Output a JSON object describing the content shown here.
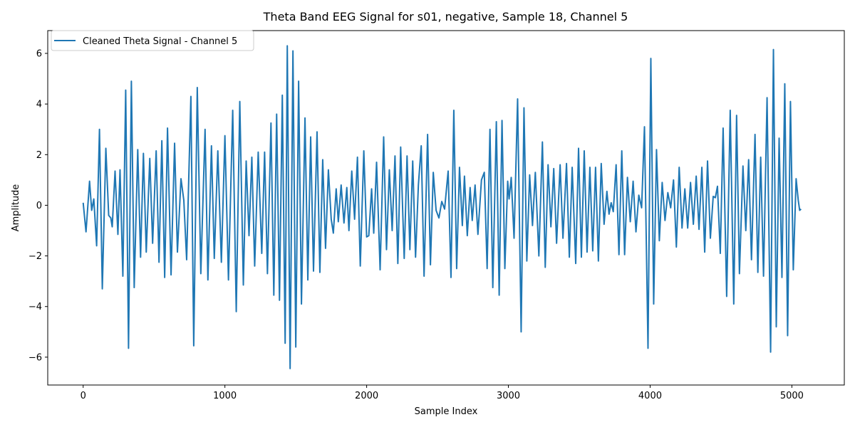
{
  "chart_data": {
    "type": "line",
    "title": "Theta Band EEG Signal for s01, negative, Sample 18, Channel 5",
    "xlabel": "Sample Index",
    "ylabel": "Amplitude",
    "xlim": [
      -250,
      5370
    ],
    "ylim": [
      -7.1,
      6.9
    ],
    "xticks": [
      0,
      1000,
      2000,
      3000,
      4000,
      5000
    ],
    "yticks": [
      -6,
      -4,
      -2,
      0,
      2,
      4,
      6
    ],
    "grid": false,
    "legend_position": "top-left",
    "color": "#1f77b4",
    "series": [
      {
        "name": "Cleaned Theta Signal - Channel 5",
        "points": [
          [
            0,
            0.1
          ],
          [
            20,
            -1.05
          ],
          [
            45,
            0.95
          ],
          [
            60,
            -0.2
          ],
          [
            75,
            0.25
          ],
          [
            95,
            -1.6
          ],
          [
            115,
            3.0
          ],
          [
            135,
            -3.3
          ],
          [
            160,
            2.25
          ],
          [
            180,
            -0.4
          ],
          [
            195,
            -0.5
          ],
          [
            205,
            -0.85
          ],
          [
            225,
            1.35
          ],
          [
            245,
            -1.15
          ],
          [
            260,
            1.4
          ],
          [
            280,
            -2.8
          ],
          [
            300,
            4.55
          ],
          [
            320,
            -5.65
          ],
          [
            340,
            4.9
          ],
          [
            360,
            -3.25
          ],
          [
            385,
            2.2
          ],
          [
            405,
            -2.05
          ],
          [
            425,
            2.05
          ],
          [
            445,
            -1.85
          ],
          [
            470,
            1.85
          ],
          [
            490,
            -1.5
          ],
          [
            515,
            2.15
          ],
          [
            535,
            -2.25
          ],
          [
            555,
            2.55
          ],
          [
            575,
            -2.85
          ],
          [
            595,
            3.05
          ],
          [
            620,
            -2.75
          ],
          [
            645,
            2.45
          ],
          [
            665,
            -1.85
          ],
          [
            690,
            1.05
          ],
          [
            710,
            0.2
          ],
          [
            730,
            -2.15
          ],
          [
            760,
            4.3
          ],
          [
            780,
            -5.55
          ],
          [
            805,
            4.65
          ],
          [
            830,
            -2.7
          ],
          [
            860,
            3.0
          ],
          [
            880,
            -2.95
          ],
          [
            905,
            2.35
          ],
          [
            925,
            -2.1
          ],
          [
            950,
            2.15
          ],
          [
            975,
            -2.25
          ],
          [
            1000,
            2.75
          ],
          [
            1025,
            -2.95
          ],
          [
            1055,
            3.75
          ],
          [
            1080,
            -4.2
          ],
          [
            1105,
            4.1
          ],
          [
            1130,
            -3.15
          ],
          [
            1150,
            1.75
          ],
          [
            1170,
            -1.2
          ],
          [
            1190,
            1.9
          ],
          [
            1210,
            -2.4
          ],
          [
            1235,
            2.1
          ],
          [
            1260,
            -1.9
          ],
          [
            1280,
            2.1
          ],
          [
            1300,
            -2.7
          ],
          [
            1325,
            3.25
          ],
          [
            1345,
            -3.55
          ],
          [
            1365,
            3.6
          ],
          [
            1385,
            -3.75
          ],
          [
            1405,
            4.35
          ],
          [
            1425,
            -5.45
          ],
          [
            1440,
            6.3
          ],
          [
            1460,
            -6.45
          ],
          [
            1480,
            6.1
          ],
          [
            1500,
            -5.6
          ],
          [
            1520,
            4.9
          ],
          [
            1540,
            -3.9
          ],
          [
            1565,
            3.45
          ],
          [
            1585,
            -2.95
          ],
          [
            1605,
            2.7
          ],
          [
            1625,
            -2.6
          ],
          [
            1650,
            2.9
          ],
          [
            1670,
            -2.65
          ],
          [
            1690,
            1.8
          ],
          [
            1710,
            -1.7
          ],
          [
            1730,
            1.4
          ],
          [
            1750,
            -0.55
          ],
          [
            1765,
            -1.1
          ],
          [
            1785,
            0.65
          ],
          [
            1800,
            -0.65
          ],
          [
            1820,
            0.8
          ],
          [
            1840,
            -0.7
          ],
          [
            1860,
            0.7
          ],
          [
            1875,
            -1.0
          ],
          [
            1895,
            1.35
          ],
          [
            1915,
            -0.55
          ],
          [
            1935,
            1.9
          ],
          [
            1955,
            -2.4
          ],
          [
            1980,
            2.15
          ],
          [
            2000,
            -1.25
          ],
          [
            2015,
            -1.2
          ],
          [
            2035,
            0.65
          ],
          [
            2050,
            -1.1
          ],
          [
            2070,
            1.7
          ],
          [
            2095,
            -2.55
          ],
          [
            2120,
            2.7
          ],
          [
            2140,
            -1.75
          ],
          [
            2160,
            1.4
          ],
          [
            2180,
            -1.0
          ],
          [
            2200,
            1.95
          ],
          [
            2220,
            -2.3
          ],
          [
            2240,
            2.3
          ],
          [
            2265,
            -2.1
          ],
          [
            2285,
            1.95
          ],
          [
            2305,
            -1.75
          ],
          [
            2325,
            1.75
          ],
          [
            2345,
            -2.05
          ],
          [
            2365,
            0.8
          ],
          [
            2385,
            2.35
          ],
          [
            2405,
            -2.8
          ],
          [
            2430,
            2.8
          ],
          [
            2450,
            -2.35
          ],
          [
            2470,
            1.3
          ],
          [
            2490,
            -0.2
          ],
          [
            2510,
            -0.5
          ],
          [
            2530,
            0.15
          ],
          [
            2550,
            -0.15
          ],
          [
            2575,
            1.35
          ],
          [
            2595,
            -2.85
          ],
          [
            2615,
            3.75
          ],
          [
            2635,
            -2.5
          ],
          [
            2655,
            1.5
          ],
          [
            2675,
            -0.8
          ],
          [
            2690,
            1.15
          ],
          [
            2710,
            -1.2
          ],
          [
            2730,
            0.7
          ],
          [
            2745,
            -0.6
          ],
          [
            2765,
            0.8
          ],
          [
            2785,
            -1.15
          ],
          [
            2810,
            1.0
          ],
          [
            2830,
            1.3
          ],
          [
            2850,
            -2.5
          ],
          [
            2870,
            3.0
          ],
          [
            2890,
            -3.25
          ],
          [
            2915,
            3.3
          ],
          [
            2935,
            -3.55
          ],
          [
            2955,
            3.35
          ],
          [
            2975,
            -2.5
          ],
          [
            2995,
            0.95
          ],
          [
            3005,
            0.25
          ],
          [
            3020,
            1.1
          ],
          [
            3040,
            -1.3
          ],
          [
            3065,
            4.2
          ],
          [
            3090,
            -5.0
          ],
          [
            3110,
            3.85
          ],
          [
            3130,
            -2.2
          ],
          [
            3150,
            1.2
          ],
          [
            3170,
            -0.8
          ],
          [
            3190,
            1.3
          ],
          [
            3215,
            -2.0
          ],
          [
            3240,
            2.5
          ],
          [
            3260,
            -2.45
          ],
          [
            3280,
            1.6
          ],
          [
            3300,
            -0.85
          ],
          [
            3320,
            1.45
          ],
          [
            3340,
            -1.5
          ],
          [
            3365,
            1.6
          ],
          [
            3385,
            -1.3
          ],
          [
            3410,
            1.65
          ],
          [
            3430,
            -2.05
          ],
          [
            3450,
            1.5
          ],
          [
            3475,
            -2.3
          ],
          [
            3495,
            2.25
          ],
          [
            3515,
            -2.05
          ],
          [
            3535,
            2.15
          ],
          [
            3555,
            -1.85
          ],
          [
            3575,
            1.5
          ],
          [
            3595,
            -1.8
          ],
          [
            3615,
            1.5
          ],
          [
            3635,
            -2.2
          ],
          [
            3655,
            1.65
          ],
          [
            3675,
            -0.75
          ],
          [
            3695,
            0.55
          ],
          [
            3710,
            -0.35
          ],
          [
            3725,
            0.1
          ],
          [
            3740,
            -0.25
          ],
          [
            3760,
            1.6
          ],
          [
            3780,
            -1.95
          ],
          [
            3800,
            2.15
          ],
          [
            3820,
            -1.95
          ],
          [
            3840,
            1.1
          ],
          [
            3860,
            -0.65
          ],
          [
            3880,
            0.95
          ],
          [
            3900,
            -1.05
          ],
          [
            3920,
            0.4
          ],
          [
            3940,
            -0.1
          ],
          [
            3960,
            3.1
          ],
          [
            3985,
            -5.65
          ],
          [
            4005,
            5.8
          ],
          [
            4025,
            -3.9
          ],
          [
            4045,
            2.2
          ],
          [
            4065,
            -1.4
          ],
          [
            4085,
            0.9
          ],
          [
            4105,
            -0.6
          ],
          [
            4125,
            0.5
          ],
          [
            4145,
            -0.1
          ],
          [
            4165,
            1.0
          ],
          [
            4185,
            -1.65
          ],
          [
            4205,
            1.5
          ],
          [
            4225,
            -0.9
          ],
          [
            4245,
            0.65
          ],
          [
            4265,
            -0.9
          ],
          [
            4285,
            0.9
          ],
          [
            4305,
            -0.75
          ],
          [
            4325,
            1.15
          ],
          [
            4345,
            -0.95
          ],
          [
            4365,
            1.5
          ],
          [
            4385,
            -1.85
          ],
          [
            4405,
            1.75
          ],
          [
            4425,
            -1.3
          ],
          [
            4445,
            0.35
          ],
          [
            4460,
            0.3
          ],
          [
            4475,
            0.75
          ],
          [
            4495,
            -1.9
          ],
          [
            4515,
            3.05
          ],
          [
            4540,
            -3.6
          ],
          [
            4565,
            3.75
          ],
          [
            4590,
            -3.9
          ],
          [
            4610,
            3.55
          ],
          [
            4630,
            -2.7
          ],
          [
            4655,
            1.55
          ],
          [
            4675,
            -1.0
          ],
          [
            4695,
            1.8
          ],
          [
            4715,
            -2.15
          ],
          [
            4740,
            2.8
          ],
          [
            4760,
            -2.65
          ],
          [
            4780,
            1.9
          ],
          [
            4800,
            -2.8
          ],
          [
            4825,
            4.25
          ],
          [
            4850,
            -5.8
          ],
          [
            4870,
            6.15
          ],
          [
            4890,
            -4.8
          ],
          [
            4910,
            2.65
          ],
          [
            4930,
            -2.85
          ],
          [
            4950,
            4.8
          ],
          [
            4970,
            -5.15
          ],
          [
            4990,
            4.1
          ],
          [
            5010,
            -2.55
          ],
          [
            5030,
            1.05
          ],
          [
            5045,
            0.2
          ],
          [
            5055,
            -0.2
          ],
          [
            5065,
            -0.15
          ]
        ]
      }
    ]
  }
}
